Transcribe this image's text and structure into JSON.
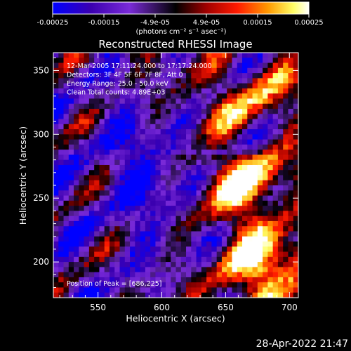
{
  "chart_data": {
    "type": "heatmap",
    "title": "Reconstructed RHESSI Image",
    "xlabel": "Heliocentric X (arcsec)",
    "ylabel": "Heliocentric Y (arcsec)",
    "xlim": [
      515,
      707
    ],
    "ylim": [
      172,
      364
    ],
    "x_ticks": [
      550,
      600,
      650,
      700
    ],
    "y_ticks": [
      200,
      250,
      300,
      350
    ],
    "colorbar": {
      "range": [
        -0.00025,
        0.00025
      ],
      "ticks": [
        "-0.00025",
        "-0.00015",
        "-4.9e-05",
        "4.9e-05",
        "0.00015",
        "0.00025"
      ],
      "unit_label": "(photons cm⁻² s⁻¹ asec⁻²)",
      "colors": [
        "#0000ff",
        "#4b0082",
        "#8a2be2",
        "#000000",
        "#8b0000",
        "#ff0000",
        "#ff8c00",
        "#ffff66",
        "#ffffff"
      ]
    },
    "annotations": [
      "12-Mar-2005 17:11:24.000 to 17:17:24.000",
      "Detectors: 3F 4F 5F 6F 7F 8F, Att 0",
      "Energy Range: 25.0 - 50.0 keV",
      "Clean     Total counts: 4.89E+03"
    ],
    "peak_label": "Position of Peak = [686,225]",
    "peak_position": [
      686,
      225
    ]
  },
  "footer": {
    "timestamp": "28-Apr-2022 21:47"
  }
}
